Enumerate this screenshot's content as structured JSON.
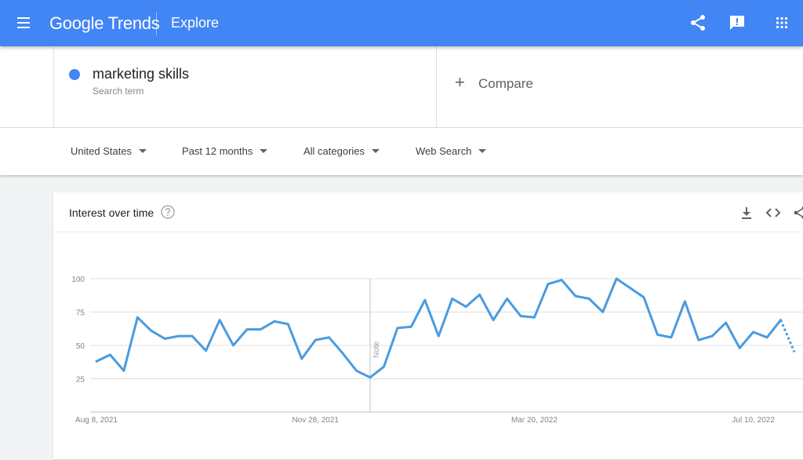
{
  "app": {
    "logo_google": "Google",
    "logo_trends": "Trends",
    "section": "Explore"
  },
  "icons": {
    "menu": "hamburger-menu-icon",
    "share": "share-icon",
    "feedback": "feedback-icon",
    "apps": "apps-grid-icon",
    "help": "help-icon",
    "download": "download-icon",
    "embed": "embed-code-icon"
  },
  "colors": {
    "appbar": "#4285f4",
    "series": "#4a9bdf"
  },
  "search": {
    "term": "marketing skills",
    "term_subtitle": "Search term",
    "compare_label": "Compare",
    "compare_plus": "+"
  },
  "filters": {
    "region": "United States",
    "time": "Past 12 months",
    "category": "All categories",
    "property": "Web Search"
  },
  "interest_card": {
    "title": "Interest over time"
  },
  "chart_data": {
    "type": "line",
    "title": "",
    "xlabel": "",
    "ylabel": "",
    "ylim": [
      0,
      100
    ],
    "yticks": [
      25,
      50,
      75,
      100
    ],
    "x_tick_labels": [
      "Aug 8, 2021",
      "Nov 28, 2021",
      "Mar 20, 2022",
      "Jul 10, 2022"
    ],
    "x_tick_index": [
      0,
      16,
      32,
      48
    ],
    "annotation": {
      "label": "Note",
      "index": 20
    },
    "grid": true,
    "legend": "none",
    "series": [
      {
        "values": [
          38,
          43,
          31,
          71,
          61,
          55,
          57,
          57,
          46,
          69,
          50,
          62,
          62,
          68,
          66,
          40,
          54,
          56,
          44,
          31,
          26,
          34,
          63,
          64,
          84,
          57,
          85,
          79,
          88,
          69,
          85,
          72,
          71,
          96,
          99,
          87,
          85,
          75,
          100,
          93,
          86,
          58,
          56,
          83,
          54,
          57,
          67,
          48,
          60,
          56,
          69,
          45
        ],
        "partial_from_index": 50
      }
    ]
  }
}
